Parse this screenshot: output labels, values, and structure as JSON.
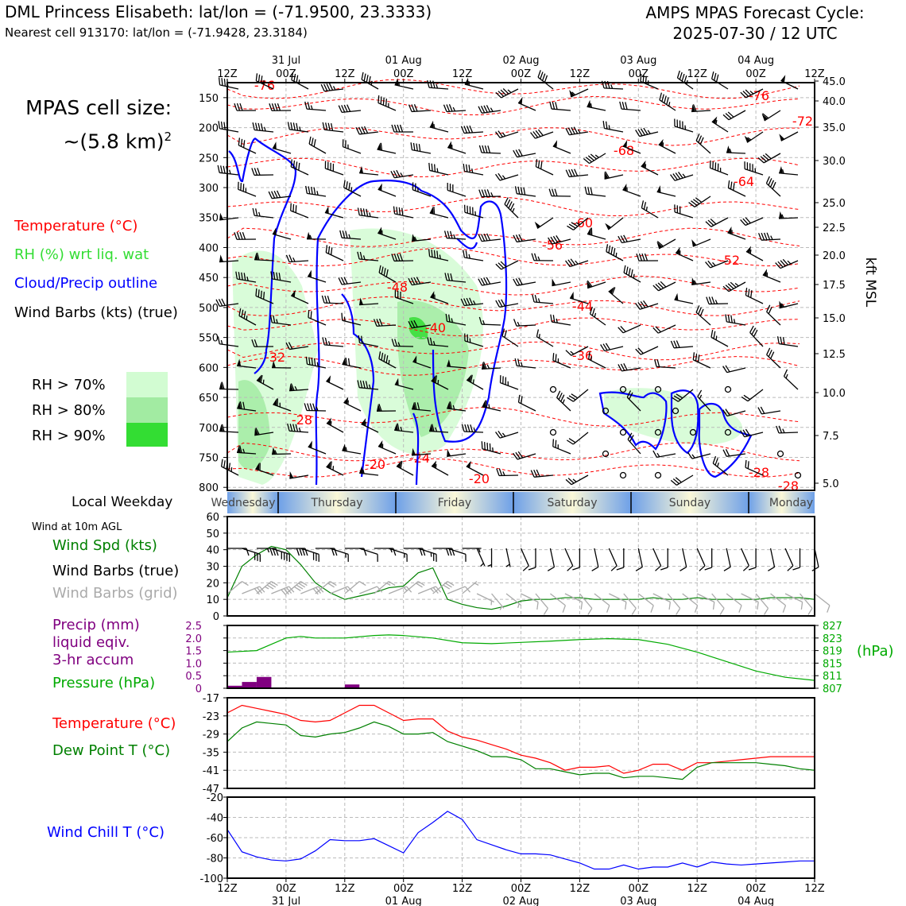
{
  "header": {
    "title_left": "DML Princess Elisabeth: lat/lon = (-71.9500, 23.3333)",
    "subtitle_left": "Nearest cell 913170: lat/lon = (-71.9428, 23.3184)",
    "title_right_1": "AMPS MPAS Forecast Cycle:",
    "title_right_2": "2025-07-30 / 12 UTC"
  },
  "left_panel": {
    "cell_size_1": "MPAS cell size:",
    "cell_size_2": "~(5.8 km)",
    "cell_size_sup": "2",
    "legend_temperature": "Temperature (°C)",
    "legend_rh": "RH (%) wrt liq. wat",
    "legend_cloud": "Cloud/Precip outline",
    "legend_wind": "Wind Barbs (kts) (true)",
    "rh_70": "RH > 70%",
    "rh_80": "RH > 80%",
    "rh_90": "RH > 90%",
    "wind_10m": "Wind at 10m AGL",
    "wind_spd": "Wind Spd (kts)",
    "wind_barbs_true": "Wind Barbs (true)",
    "wind_barbs_grid": "Wind Barbs (grid)",
    "precip_1": "Precip (mm)",
    "precip_2": "liquid eqiv.",
    "precip_3": "3-hr accum",
    "pressure": "Pressure (hPa)",
    "pressure_unit": "(hPa)",
    "temperature": "Temperature (°C)",
    "dewpoint": "Dew Point T (°C)",
    "windchill": "Wind Chill T (°C)",
    "local_weekday": "Local Weekday"
  },
  "colors": {
    "temperature": "#ff0000",
    "rh": "#33dd33",
    "cloud": "#0000ff",
    "wind_spd": "#008000",
    "dewpoint": "#008000",
    "precip": "#800080",
    "pressure": "#00aa00",
    "windchill": "#0000ff",
    "grid_barbs": "#aaaaaa",
    "rh_70": "#d2fcd2",
    "rh_80": "#a2eba2",
    "rh_90": "#33dd33"
  },
  "time_axis": {
    "top_ticks": [
      "12Z",
      "00Z",
      "12Z",
      "00Z",
      "12Z",
      "00Z",
      "12Z",
      "00Z",
      "12Z",
      "00Z",
      "12Z"
    ],
    "top_dates": [
      "31 Jul",
      "01 Aug",
      "02 Aug",
      "03 Aug",
      "04 Aug"
    ],
    "bottom_ticks": [
      "12Z",
      "00Z",
      "12Z",
      "00Z",
      "12Z",
      "00Z",
      "12Z",
      "00Z",
      "12Z",
      "00Z",
      "12Z"
    ],
    "bottom_dates": [
      "31 Jul",
      "01 Aug",
      "02 Aug",
      "03 Aug",
      "04 Aug"
    ],
    "weekdays": [
      "Wednesday",
      "Thursday",
      "Friday",
      "Saturday",
      "Sunday",
      "Monday"
    ]
  },
  "chart_data": [
    {
      "type": "heatmap",
      "name": "time-height cross section",
      "y_left_pressure_ticks": [
        "150",
        "200",
        "250",
        "300",
        "350",
        "400",
        "450",
        "500",
        "550",
        "600",
        "650",
        "700",
        "750",
        "800"
      ],
      "y_right_kft_ticks": [
        "45.0",
        "40.0",
        "35.0",
        "30.0",
        "25.0",
        "22.5",
        "20.0",
        "17.5",
        "15.0",
        "12.5",
        "10.0",
        "7.5",
        "5.0"
      ],
      "y_right_label": "kft MSL",
      "temperature_contour_labels": [
        "-76",
        "-72",
        "-68",
        "-64",
        "-60",
        "-56",
        "-52",
        "-48",
        "-44",
        "-40",
        "-36",
        "-32",
        "-28",
        "-24",
        "-20",
        "-28",
        "-28",
        "-20",
        "-76"
      ]
    },
    {
      "type": "line",
      "name": "wind speed",
      "hours": [
        0,
        3,
        6,
        9,
        12,
        15,
        18,
        21,
        24,
        27,
        30,
        33,
        36,
        39,
        42,
        45,
        48,
        51,
        54,
        57,
        60,
        63,
        66,
        69,
        72,
        75,
        78,
        81,
        84,
        87,
        90,
        93,
        96,
        99,
        102,
        105,
        108,
        111,
        114,
        117,
        120
      ],
      "values": [
        11,
        30,
        37,
        42,
        40,
        31,
        20,
        14,
        10,
        12,
        14,
        17,
        18,
        26,
        29,
        10,
        7,
        5,
        4,
        6,
        9,
        10,
        10,
        11,
        11,
        10,
        10,
        10,
        10,
        11,
        10,
        10,
        11,
        10,
        10,
        10,
        10,
        11,
        11,
        11,
        10
      ],
      "ylim": [
        0,
        60
      ],
      "yticks": [
        "0",
        "10",
        "20",
        "30",
        "40",
        "50",
        "60"
      ]
    },
    {
      "type": "bar",
      "name": "precip 3-hr accum",
      "hours": [
        3,
        6,
        9,
        27
      ],
      "values": [
        0.1,
        0.25,
        0.45,
        0.15
      ],
      "ylim": [
        0,
        2.5
      ],
      "yticks_left": [
        "0",
        "0.5",
        "1.0",
        "1.5",
        "2.0",
        "2.5"
      ]
    },
    {
      "type": "line",
      "name": "pressure",
      "hours": [
        0,
        6,
        9,
        12,
        15,
        18,
        24,
        30,
        33,
        36,
        42,
        48,
        54,
        60,
        66,
        72,
        78,
        84,
        90,
        96,
        102,
        108,
        114,
        120
      ],
      "values": [
        818.5,
        819,
        821,
        823,
        823.5,
        823,
        823,
        823.8,
        824,
        823.8,
        823,
        821.5,
        821.2,
        821.6,
        822,
        822.5,
        822.8,
        822.5,
        821,
        818.5,
        815.5,
        812.5,
        810.5,
        809.5
      ],
      "ylim": [
        807,
        827
      ],
      "yticks_right": [
        "807",
        "811",
        "815",
        "819",
        "823",
        "827"
      ]
    },
    {
      "type": "line",
      "name": "temperature and dew point",
      "hours": [
        0,
        3,
        6,
        9,
        12,
        15,
        18,
        21,
        24,
        27,
        30,
        33,
        36,
        39,
        42,
        45,
        48,
        51,
        54,
        57,
        60,
        63,
        66,
        69,
        72,
        75,
        78,
        81,
        84,
        87,
        90,
        93,
        96,
        99,
        102,
        105,
        108,
        111,
        114,
        117,
        120
      ],
      "series": [
        {
          "name": "Temperature",
          "values": [
            -22,
            -19.5,
            -20.5,
            -21.5,
            -22.5,
            -24.5,
            -25,
            -24.5,
            -22,
            -19.5,
            -19.5,
            -22,
            -24.5,
            -24,
            -24,
            -28,
            -30,
            -31,
            -32.5,
            -34,
            -36,
            -37,
            -38.5,
            -41,
            -40,
            -40,
            -39.5,
            -42,
            -41,
            -39,
            -39,
            -41,
            -38.5,
            -38.5,
            -38,
            -37.5,
            -37,
            -36.5,
            -36.5,
            -36.5,
            -36.5
          ]
        },
        {
          "name": "Dew Point",
          "values": [
            -31.5,
            -27,
            -25,
            -25.5,
            -26,
            -29.5,
            -30,
            -29,
            -28.5,
            -27,
            -25,
            -26.5,
            -29,
            -29,
            -28.5,
            -31.5,
            -33,
            -34.5,
            -36.5,
            -36.5,
            -37.5,
            -40.5,
            -40.5,
            -41.5,
            -42.5,
            -42,
            -42,
            -43.5,
            -43,
            -43,
            -43.5,
            -44,
            -40,
            -38.5,
            -38.5,
            -38.5,
            -38.5,
            -39,
            -39.5,
            -40.5,
            -41
          ]
        }
      ],
      "ylim": [
        -47,
        -17
      ],
      "yticks": [
        "-47",
        "-41",
        "-35",
        "-29",
        "-23",
        "-17"
      ]
    },
    {
      "type": "line",
      "name": "wind chill",
      "hours": [
        0,
        3,
        6,
        9,
        12,
        15,
        18,
        21,
        24,
        27,
        30,
        33,
        36,
        39,
        42,
        45,
        48,
        51,
        54,
        57,
        60,
        63,
        66,
        69,
        72,
        75,
        78,
        81,
        84,
        87,
        90,
        93,
        96,
        99,
        102,
        105,
        108,
        111,
        114,
        117,
        120
      ],
      "values": [
        -52,
        -74,
        -79,
        -82,
        -83,
        -81,
        -73,
        -62,
        -63,
        -63,
        -61,
        -68,
        -75,
        -55,
        -45,
        -34,
        -42,
        -62,
        -67,
        -72,
        -76,
        -76,
        -77,
        -81,
        -85,
        -91,
        -91,
        -87,
        -91,
        -89,
        -89,
        -85,
        -89,
        -84,
        -86,
        -87,
        -86,
        -85,
        -84,
        -83,
        -83
      ],
      "ylim": [
        -100,
        -20
      ],
      "yticks": [
        "-100",
        "-80",
        "-60",
        "-40",
        "-20"
      ]
    }
  ]
}
